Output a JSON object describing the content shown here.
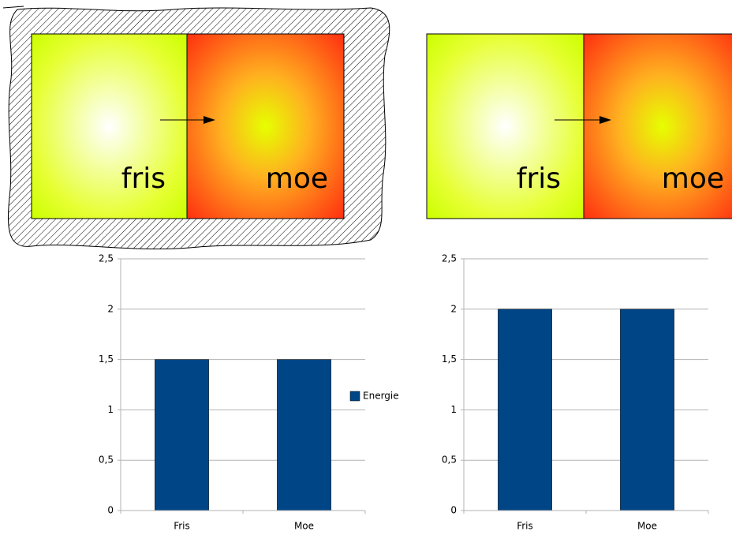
{
  "diagrams": [
    {
      "labels": [
        "fris",
        "moe"
      ]
    },
    {
      "labels": [
        "fris",
        "moe"
      ]
    }
  ],
  "chart_data": [
    {
      "type": "bar",
      "categories": [
        "Fris",
        "Moe"
      ],
      "series": [
        {
          "name": "Energie",
          "color": "#004586",
          "values": [
            1.5,
            1.5
          ]
        }
      ],
      "ylim": [
        0,
        2.5
      ],
      "yticks": [
        0,
        {
          "value": 0.5,
          "label": "0,5"
        },
        1,
        {
          "value": 1.5,
          "label": "1,5"
        },
        2,
        {
          "value": 2.5,
          "label": "2,5"
        }
      ],
      "grid": true,
      "legend": "right"
    },
    {
      "type": "bar",
      "categories": [
        "Fris",
        "Moe"
      ],
      "color": "#004586",
      "values": [
        2,
        2
      ],
      "ylim": [
        0,
        2.5
      ],
      "yticks": [
        0,
        {
          "value": 0.5,
          "label": "0,5"
        },
        1,
        {
          "value": 1.5,
          "label": "1,5"
        },
        2,
        {
          "value": 2.5,
          "label": "2,5"
        }
      ],
      "grid": true
    }
  ]
}
